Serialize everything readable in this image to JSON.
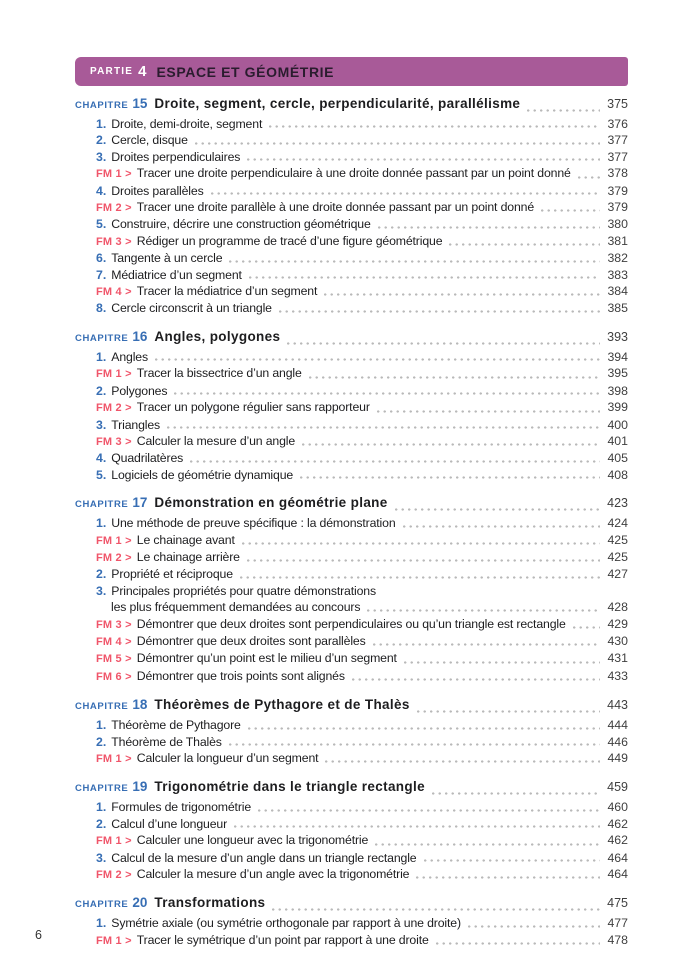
{
  "colors": {
    "banner_purple": "#a85a98",
    "chapter_blue": "#376eb4",
    "fm_pink": "#f0556a",
    "text": "#1d1d1f",
    "dot_leader": "#b9b9b9"
  },
  "part_banner": {
    "label": "PARTIE",
    "number": "4",
    "title": "ESPACE ET GÉOMÉTRIE"
  },
  "footer": {
    "page_number": "6"
  },
  "chapters": [
    {
      "label": "CHAPITRE",
      "number": "15",
      "title": "Droite, segment, cercle, perpendicularité, parallélisme",
      "page": "375",
      "entries": [
        {
          "type": "item",
          "num": "1.",
          "text": "Droite, demi-droite, segment",
          "page": "376"
        },
        {
          "type": "item",
          "num": "2.",
          "text": "Cercle, disque",
          "page": "377"
        },
        {
          "type": "item",
          "num": "3.",
          "text": "Droites perpendiculaires",
          "page": "377"
        },
        {
          "type": "fm",
          "num": "FM 1 >",
          "text": "Tracer une droite perpendiculaire à une droite donnée passant par un point donné",
          "page": "378"
        },
        {
          "type": "item",
          "num": "4.",
          "text": "Droites parallèles",
          "page": "379"
        },
        {
          "type": "fm",
          "num": "FM 2 >",
          "text": "Tracer une droite parallèle à une droite donnée passant par un point donné",
          "page": "379"
        },
        {
          "type": "item",
          "num": "5.",
          "text": "Construire, décrire une construction géométrique",
          "page": "380"
        },
        {
          "type": "fm",
          "num": "FM 3 >",
          "text": "Rédiger un programme de tracé d’une figure géométrique",
          "page": "381"
        },
        {
          "type": "item",
          "num": "6.",
          "text": "Tangente à un cercle",
          "page": "382"
        },
        {
          "type": "item",
          "num": "7.",
          "text": "Médiatrice d’un segment",
          "page": "383"
        },
        {
          "type": "fm",
          "num": "FM 4 >",
          "text": "Tracer la médiatrice d’un segment",
          "page": "384"
        },
        {
          "type": "item",
          "num": "8.",
          "text": "Cercle circonscrit à un triangle",
          "page": "385"
        }
      ]
    },
    {
      "label": "CHAPITRE",
      "number": "16",
      "title": "Angles, polygones",
      "page": "393",
      "entries": [
        {
          "type": "item",
          "num": "1.",
          "text": "Angles",
          "page": "394"
        },
        {
          "type": "fm",
          "num": "FM 1 >",
          "text": "Tracer la bissectrice d’un angle",
          "page": "395"
        },
        {
          "type": "item",
          "num": "2.",
          "text": "Polygones",
          "page": "398"
        },
        {
          "type": "fm",
          "num": "FM 2 >",
          "text": "Tracer un polygone régulier sans rapporteur",
          "page": "399"
        },
        {
          "type": "item",
          "num": "3.",
          "text": "Triangles",
          "page": "400"
        },
        {
          "type": "fm",
          "num": "FM 3 >",
          "text": "Calculer la mesure d’un angle",
          "page": "401"
        },
        {
          "type": "item",
          "num": "4.",
          "text": "Quadrilatères",
          "page": "405"
        },
        {
          "type": "item",
          "num": "5.",
          "text": "Logiciels de géométrie dynamique",
          "page": "408"
        }
      ]
    },
    {
      "label": "CHAPITRE",
      "number": "17",
      "title": "Démonstration en géométrie plane",
      "page": "423",
      "entries": [
        {
          "type": "item",
          "num": "1.",
          "text": "Une méthode de preuve spécifique : la démonstration",
          "page": "424"
        },
        {
          "type": "fm",
          "num": "FM 1 >",
          "text": "Le chainage avant",
          "page": "425"
        },
        {
          "type": "fm",
          "num": "FM 2 >",
          "text": "Le chainage arrière",
          "page": "425"
        },
        {
          "type": "item",
          "num": "2.",
          "text": "Propriété et réciproque",
          "page": "427"
        },
        {
          "type": "item",
          "num": "3.",
          "text": "Principales propriétés pour quatre démonstrations",
          "text2": "les plus fréquemment demandées au concours",
          "page": "428"
        },
        {
          "type": "fm",
          "num": "FM 3 >",
          "text": "Démontrer que deux droites sont perpendiculaires ou qu’un triangle est rectangle",
          "page": "429"
        },
        {
          "type": "fm",
          "num": "FM 4 >",
          "text": "Démontrer que deux droites sont parallèles",
          "page": "430"
        },
        {
          "type": "fm",
          "num": "FM 5 >",
          "text": "Démontrer qu’un point est le milieu d’un segment",
          "page": "431"
        },
        {
          "type": "fm",
          "num": "FM 6 >",
          "text": "Démontrer que trois points sont alignés",
          "page": "433"
        }
      ]
    },
    {
      "label": "CHAPITRE",
      "number": "18",
      "title": "Théorèmes de Pythagore et de Thalès",
      "page": "443",
      "entries": [
        {
          "type": "item",
          "num": "1.",
          "text": "Théorème de Pythagore",
          "page": "444"
        },
        {
          "type": "item",
          "num": "2.",
          "text": "Théorème de Thalès",
          "page": "446"
        },
        {
          "type": "fm",
          "num": "FM 1 >",
          "text": "Calculer la longueur d’un segment",
          "page": "449"
        }
      ]
    },
    {
      "label": "CHAPITRE",
      "number": "19",
      "title": "Trigonométrie dans le triangle rectangle",
      "page": "459",
      "entries": [
        {
          "type": "item",
          "num": "1.",
          "text": "Formules de trigonométrie",
          "page": "460"
        },
        {
          "type": "item",
          "num": "2.",
          "text": "Calcul d’une longueur",
          "page": "462"
        },
        {
          "type": "fm",
          "num": "FM 1 >",
          "text": "Calculer une longueur avec la trigonométrie",
          "page": "462"
        },
        {
          "type": "item",
          "num": "3.",
          "text": "Calcul de la mesure d’un angle dans un triangle rectangle",
          "page": "464"
        },
        {
          "type": "fm",
          "num": "FM 2 >",
          "text": "Calculer la mesure d’un angle avec la trigonométrie",
          "page": "464"
        }
      ]
    },
    {
      "label": "CHAPITRE",
      "number": "20",
      "title": "Transformations",
      "page": "475",
      "entries": [
        {
          "type": "item",
          "num": "1.",
          "text": "Symétrie axiale (ou symétrie orthogonale par rapport à une droite)",
          "page": "477"
        },
        {
          "type": "fm",
          "num": "FM 1 >",
          "text": "Tracer le symétrique d’un point par rapport à une droite",
          "page": "478"
        }
      ]
    }
  ]
}
